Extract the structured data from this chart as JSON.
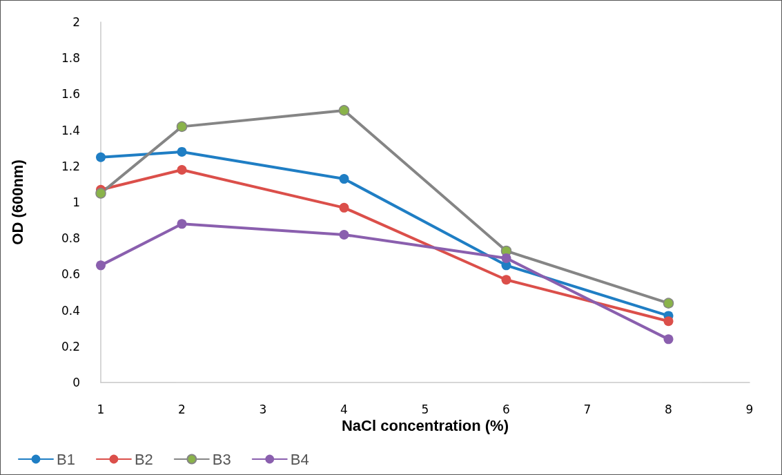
{
  "chart_data": {
    "type": "line",
    "xlabel": "NaCl concentration (%)",
    "ylabel": "OD (600nm)",
    "xlim": [
      1,
      9
    ],
    "xticks": [
      1,
      2,
      3,
      4,
      5,
      6,
      7,
      8,
      9
    ],
    "ylim": [
      0,
      2
    ],
    "yticks": [
      0,
      0.2,
      0.4,
      0.6,
      0.8,
      1,
      1.2,
      1.4,
      1.6,
      1.8,
      2
    ],
    "x": [
      1,
      2,
      4,
      6,
      8
    ],
    "grid": false,
    "legend": "bottom left",
    "marker": "circle",
    "line_style": "solid",
    "series": [
      {
        "name": "B1",
        "color": "#1f7ec4",
        "values": [
          1.25,
          1.28,
          1.13,
          0.65,
          0.37
        ]
      },
      {
        "name": "B2",
        "color": "#db4f4a",
        "values": [
          1.07,
          1.18,
          0.97,
          0.57,
          0.34
        ]
      },
      {
        "name": "B3",
        "color": "#858585",
        "colors": [
          "#8ab34a",
          "#8ab34a",
          "#8ab34a",
          "#8ab34a",
          "#8ab34a"
        ],
        "values": [
          1.05,
          1.42,
          1.51,
          0.73,
          0.44
        ]
      },
      {
        "name": "B4",
        "color": "#8a5fae",
        "values": [
          0.65,
          0.88,
          0.82,
          0.69,
          0.24
        ]
      }
    ]
  }
}
